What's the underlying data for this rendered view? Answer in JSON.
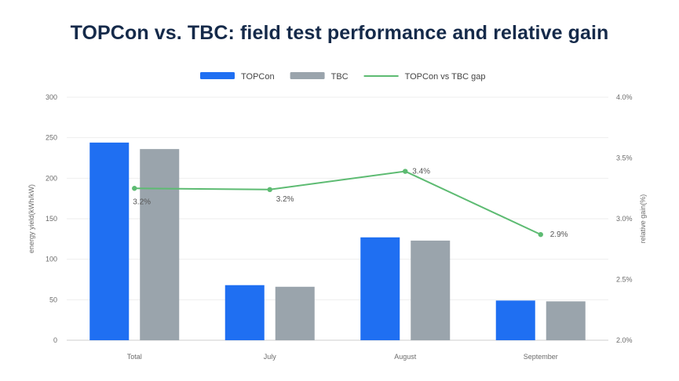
{
  "chart_data": {
    "type": "bar",
    "title": "TOPCon vs. TBC: field test performance and relative gain",
    "categories": [
      "Total",
      "July",
      "August",
      "September"
    ],
    "series": [
      {
        "name": "TOPCon",
        "type": "bar",
        "axis": "left",
        "color": "#1f6ff2",
        "values": [
          244,
          68,
          127,
          49
        ]
      },
      {
        "name": "TBC",
        "type": "bar",
        "axis": "left",
        "color": "#9aa4ac",
        "values": [
          236,
          66,
          123,
          48
        ]
      },
      {
        "name": "TOPCon vs TBC gap",
        "type": "line",
        "axis": "right",
        "color": "#5dbb72",
        "values": [
          3.25,
          3.24,
          3.39,
          2.87
        ],
        "labels": [
          "3.2%",
          "3.2%",
          "3.4%",
          "2.9%"
        ]
      }
    ],
    "ylabel": "energy yield(kWh/kW)",
    "y2label": "relative gain(%)",
    "ylim": [
      0,
      300
    ],
    "yticks": [
      "0",
      "50",
      "100",
      "150",
      "200",
      "250",
      "300"
    ],
    "y2lim": [
      2.0,
      4.0
    ],
    "y2ticks": [
      "2.0%",
      "2.5%",
      "3.0%",
      "3.5%",
      "4.0%"
    ],
    "grid": true,
    "legend_position": "top-center"
  }
}
